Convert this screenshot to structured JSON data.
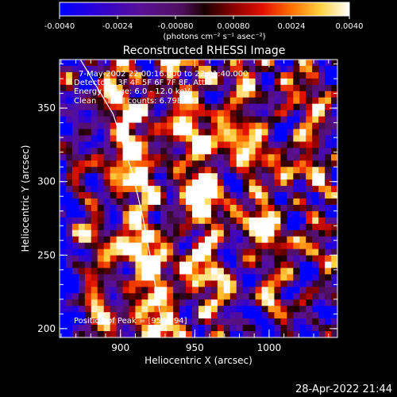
{
  "colorbar": {
    "ticks": [
      "-0.0040",
      "-0.0024",
      "-0.00080",
      "0.00080",
      "0.0024",
      "0.0040"
    ],
    "unit_label": "(photons cm⁻² s⁻¹ asec⁻²)",
    "range": [
      -0.004,
      0.004
    ]
  },
  "chart_data": {
    "type": "heatmap",
    "title": "Reconstructed RHESSI Image",
    "xlabel": "Heliocentric X (arcsec)",
    "ylabel": "Heliocentric Y (arcsec)",
    "xticks": [
      "900",
      "950",
      "1000"
    ],
    "yticks": [
      "200",
      "250",
      "300",
      "350"
    ],
    "x_tick_values": [
      900,
      950,
      1000
    ],
    "y_tick_values": [
      200,
      250,
      300,
      350
    ],
    "xlim": [
      859,
      1046
    ],
    "ylim": [
      194,
      383
    ],
    "annotations": [
      "7-May-2002 22:00:16.000 to 22:01:40.000",
      "Detectors: 3F 4F 5F 6F 7F 8F, Att 0",
      "Energy Range: 6.0 - 12.0 keV",
      "Clean    Total counts: 6.79E+03"
    ],
    "peak_label": "Position of Peak = [958,294]",
    "peak": [
      958,
      294
    ],
    "limb_line": [
      [
        873,
        383
      ],
      [
        895,
        346
      ],
      [
        908,
        306
      ],
      [
        915,
        276
      ],
      [
        921,
        244
      ],
      [
        925,
        220
      ],
      [
        928,
        203
      ]
    ]
  },
  "timestamp": "28-Apr-2022 21:44"
}
